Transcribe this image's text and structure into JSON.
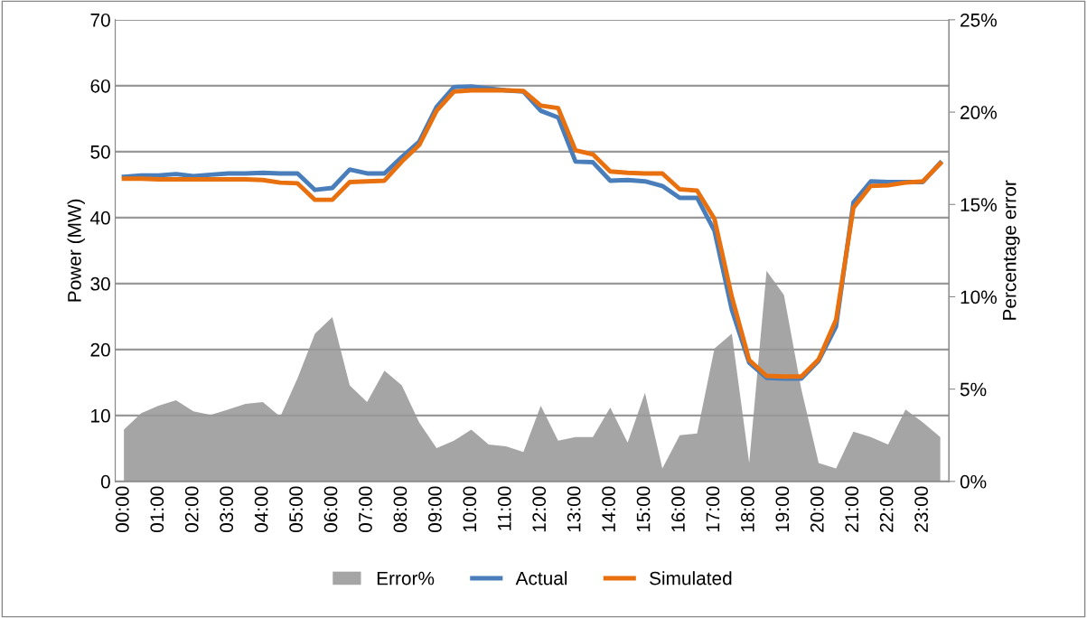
{
  "chart_data": {
    "type": "line",
    "ylabel": "Power (MW)",
    "y2label": "Percentage error",
    "categories": [
      "00:00",
      null,
      "01:00",
      null,
      "02:00",
      null,
      "03:00",
      null,
      "04:00",
      null,
      "05:00",
      null,
      "06:00",
      null,
      "07:00",
      null,
      "08:00",
      null,
      "09:00",
      null,
      "10:00",
      null,
      "11:00",
      null,
      "12:00",
      null,
      "13:00",
      null,
      "14:00",
      null,
      "15:00",
      null,
      "16:00",
      null,
      "17:00",
      null,
      "18:00",
      null,
      "19:00",
      null,
      "20:00",
      null,
      "21:00",
      null,
      "22:00",
      null,
      "23:00",
      null
    ],
    "series": [
      {
        "name": "Error%",
        "type": "area",
        "axis": "y2",
        "color": "#a5a5a5",
        "values": [
          2.8,
          3.7,
          4.1,
          4.4,
          3.8,
          3.6,
          3.9,
          4.2,
          4.3,
          3.5,
          5.6,
          8.0,
          8.9,
          5.2,
          4.3,
          6.0,
          5.2,
          3.2,
          1.8,
          2.2,
          2.8,
          2.0,
          1.9,
          1.6,
          4.1,
          2.2,
          2.4,
          2.4,
          4.0,
          2.1,
          4.8,
          0.7,
          2.5,
          2.6,
          7.2,
          8.0,
          1.0,
          11.4,
          10.1,
          5.0,
          1.0,
          0.7,
          2.7,
          2.4,
          2.0,
          3.9,
          3.2,
          2.4
        ]
      },
      {
        "name": "Actual",
        "color": "#4a7ebb",
        "values": [
          46.2,
          46.4,
          46.4,
          46.6,
          46.3,
          46.5,
          46.7,
          46.7,
          46.8,
          46.7,
          46.7,
          44.2,
          44.5,
          47.3,
          46.7,
          46.7,
          49.2,
          51.5,
          56.8,
          59.8,
          59.9,
          59.6,
          59.3,
          59.1,
          56.2,
          55.2,
          48.5,
          48.4,
          45.6,
          45.7,
          45.5,
          44.8,
          43.0,
          43.0,
          38.0,
          26.0,
          18.0,
          15.7,
          15.6,
          15.6,
          18.3,
          23.5,
          42.3,
          45.5,
          45.4,
          45.4,
          45.4,
          48.3
        ]
      },
      {
        "name": "Simulated",
        "color": "#e8700e",
        "values": [
          45.9,
          45.9,
          45.8,
          45.8,
          45.8,
          45.8,
          45.8,
          45.8,
          45.7,
          45.3,
          45.2,
          42.7,
          42.7,
          45.4,
          45.5,
          45.6,
          48.5,
          51.0,
          56.2,
          59.1,
          59.3,
          59.3,
          59.3,
          59.2,
          57.0,
          56.6,
          50.2,
          49.6,
          47.0,
          46.8,
          46.7,
          46.7,
          44.3,
          44.1,
          39.8,
          28.0,
          18.4,
          16.0,
          15.9,
          15.9,
          18.5,
          24.5,
          41.5,
          44.8,
          44.9,
          45.3,
          45.5,
          48.2
        ]
      }
    ],
    "ylim": [
      0,
      70
    ],
    "yticks": [
      0,
      10,
      20,
      30,
      40,
      50,
      60,
      70
    ],
    "y2lim": [
      0,
      25
    ],
    "y2ticks": [
      {
        "value": 0,
        "label": "0%"
      },
      {
        "value": 5,
        "label": "5%"
      },
      {
        "value": 10,
        "label": "10%"
      },
      {
        "value": 15,
        "label": "15%"
      },
      {
        "value": 20,
        "label": "20%"
      },
      {
        "value": 25,
        "label": "25%"
      }
    ],
    "grid": "y",
    "legend": "bottom",
    "marker": "none",
    "line_style": "solid"
  }
}
